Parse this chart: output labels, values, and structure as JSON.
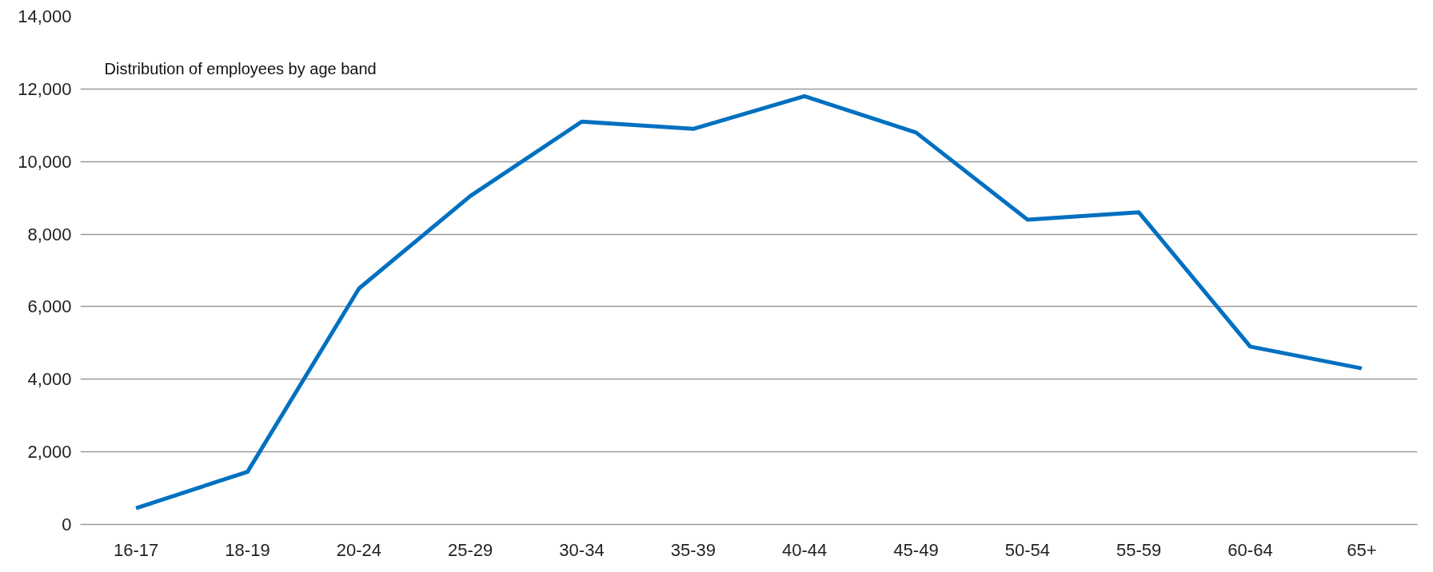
{
  "chart_data": {
    "type": "line",
    "title": "Distribution of employees by age band",
    "categories": [
      "16-17",
      "18-19",
      "20-24",
      "25-29",
      "30-34",
      "35-39",
      "40-44",
      "45-49",
      "50-54",
      "55-59",
      "60-64",
      "65+"
    ],
    "series": [
      {
        "color": "#0070c0",
        "values": [
          450,
          1450,
          6500,
          9050,
          11100,
          10900,
          11800,
          10800,
          8400,
          8600,
          4900,
          4300
        ]
      }
    ],
    "ylim": [
      0,
      14000
    ],
    "yticks": [
      {
        "value": 0,
        "label": "0"
      },
      {
        "value": 2000,
        "label": "2,000"
      },
      {
        "value": 4000,
        "label": "4,000"
      },
      {
        "value": 6000,
        "label": "6,000"
      },
      {
        "value": 8000,
        "label": "8,000"
      },
      {
        "value": 10000,
        "label": "10,000"
      },
      {
        "value": 12000,
        "label": "12,000"
      },
      {
        "value": 14000,
        "label": "14,000"
      }
    ],
    "grid": "y",
    "marker": "none",
    "line_style": "solid"
  }
}
